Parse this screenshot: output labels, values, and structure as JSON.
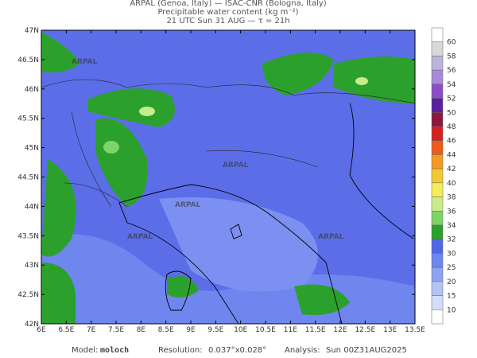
{
  "header": {
    "line1": "ARPAL (Genoa, Italy)  —  ISAC-CNR (Bologna, Italy)",
    "line2": "Precipitable water content (kg m⁻²)",
    "line3": "21 UTC Sun 31 AUG  —  τ = 21h"
  },
  "map": {
    "lat_labels": [
      "47N",
      "46.5N",
      "46N",
      "45.5N",
      "45N",
      "44.5N",
      "44N",
      "43.5N",
      "43N",
      "42.5N",
      "42N"
    ],
    "lon_labels": [
      "6E",
      "6.5E",
      "7E",
      "7.5E",
      "8E",
      "8.5E",
      "9E",
      "9.5E",
      "10E",
      "10.5E",
      "11E",
      "11.5E",
      "12E",
      "12.5E",
      "13E",
      "13.5E"
    ],
    "watermark": "ARPAL"
  },
  "colorbar": {
    "levels": [
      60,
      58,
      56,
      54,
      52,
      50,
      48,
      46,
      44,
      42,
      40,
      38,
      36,
      34,
      32,
      30,
      25,
      20,
      15,
      10
    ],
    "colors": [
      "#ffffff",
      "#d8d8d8",
      "#bdb3dc",
      "#a88ad8",
      "#8a4fc8",
      "#5a1fa0",
      "#8a1840",
      "#d42020",
      "#f05a18",
      "#f59a20",
      "#f2c832",
      "#f5ee5a",
      "#c8ec8c",
      "#7fd36b",
      "#2ca02c",
      "#4f67e8",
      "#6f86ee",
      "#8fa2f2",
      "#b4c2f6",
      "#d4ddfa",
      "#ffffff"
    ]
  },
  "footer": {
    "model_label": "Model:",
    "model": "moloch",
    "resolution_label": "Resolution:",
    "resolution": "0.037°x0.028°",
    "analysis_label": "Analysis:",
    "analysis": "Sun 00Z31AUG2025"
  }
}
